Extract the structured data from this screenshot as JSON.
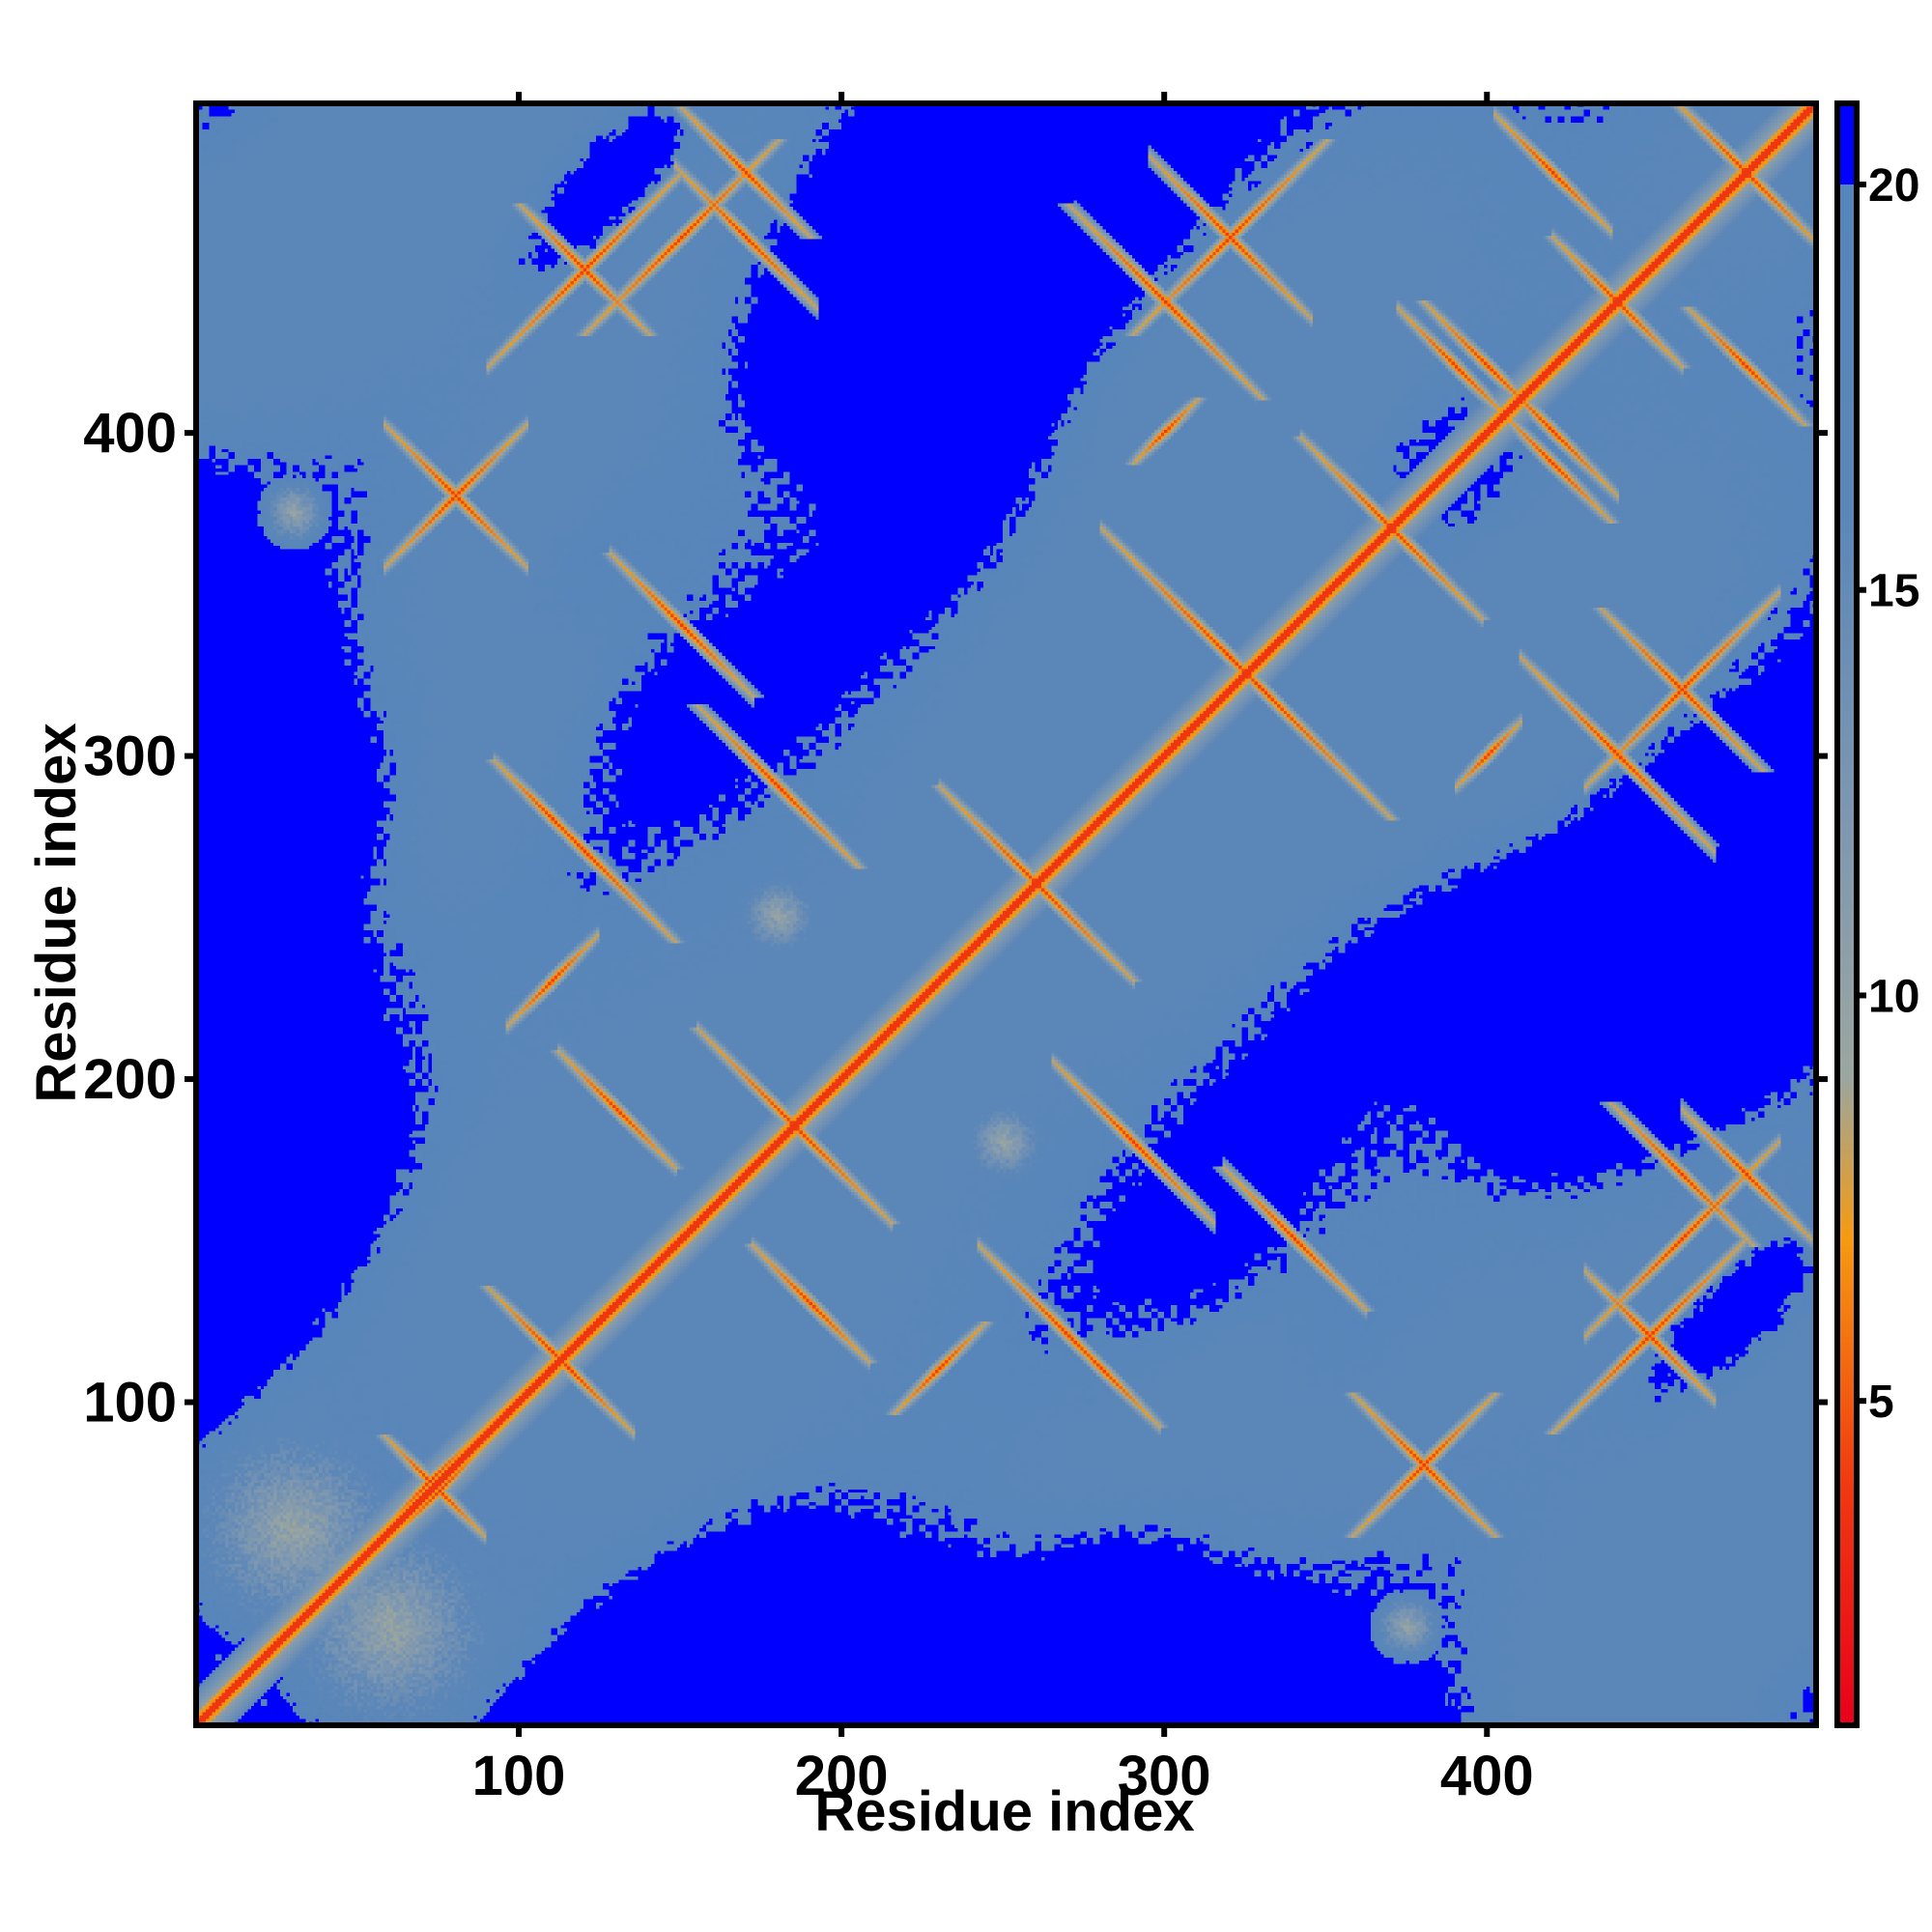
{
  "chart_data": {
    "type": "heatmap",
    "title": "",
    "xlabel": "Residue index",
    "ylabel": "Residue index",
    "n_residues": 502,
    "xlim": [
      0,
      502
    ],
    "ylim": [
      0,
      502
    ],
    "x_ticks": [
      100,
      200,
      300,
      400
    ],
    "y_ticks": [
      100,
      200,
      300,
      400
    ],
    "colorbar": {
      "ticks": [
        5,
        10,
        15,
        20
      ],
      "range": [
        1,
        21
      ],
      "stops": [
        {
          "value": 1,
          "color": "#e8001c"
        },
        {
          "value": 4,
          "color": "#f03a10"
        },
        {
          "value": 7,
          "color": "#f59a12"
        },
        {
          "value": 9,
          "color": "#9aa6a0"
        },
        {
          "value": 12,
          "color": "#7f98b0"
        },
        {
          "value": 16,
          "color": "#5b86b8"
        },
        {
          "value": 20,
          "color": "#5685bb"
        },
        {
          "value": 20.001,
          "color": "#0000ff"
        },
        {
          "value": 21,
          "color": "#0000ff"
        }
      ]
    },
    "background_color": "#0000ff",
    "mid_color": "#5685bb",
    "diagonal_color": "#e8001c",
    "contact_patterns": [
      {
        "i": 72,
        "j": 75,
        "kind": "cross",
        "len": 14
      },
      {
        "i": 60,
        "j": 30,
        "kind": "patch",
        "len": 40
      },
      {
        "i": 110,
        "j": 115,
        "kind": "antidiag",
        "len": 20
      },
      {
        "i": 185,
        "j": 185,
        "kind": "cross",
        "len": 30
      },
      {
        "i": 260,
        "j": 260,
        "kind": "cross",
        "len": 30
      },
      {
        "i": 370,
        "j": 370,
        "kind": "cross",
        "len": 28
      },
      {
        "i": 330,
        "j": 320,
        "kind": "antidiag",
        "len": 40
      },
      {
        "i": 480,
        "j": 480,
        "kind": "cross",
        "len": 25
      },
      {
        "i": 440,
        "j": 440,
        "kind": "antidiag",
        "len": 20
      },
      {
        "i": 150,
        "j": 460,
        "kind": "parallel",
        "len": 30
      },
      {
        "i": 170,
        "j": 480,
        "kind": "antidiag",
        "len": 20
      },
      {
        "i": 80,
        "j": 380,
        "kind": "cross",
        "len": 20
      },
      {
        "i": 30,
        "j": 375,
        "kind": "patch",
        "len": 12
      },
      {
        "i": 380,
        "j": 80,
        "kind": "cross",
        "len": 22
      },
      {
        "i": 375,
        "j": 30,
        "kind": "patch",
        "len": 10
      },
      {
        "i": 120,
        "j": 270,
        "kind": "antidiag",
        "len": 28
      },
      {
        "i": 180,
        "j": 290,
        "kind": "antidiag",
        "len": 25
      },
      {
        "i": 270,
        "j": 120,
        "kind": "antidiag",
        "len": 22
      },
      {
        "i": 290,
        "j": 180,
        "kind": "antidiag",
        "len": 22
      },
      {
        "i": 300,
        "j": 440,
        "kind": "antidiag",
        "len": 30
      },
      {
        "i": 440,
        "j": 300,
        "kind": "antidiag",
        "len": 28
      },
      {
        "i": 250,
        "j": 180,
        "kind": "patch",
        "len": 14
      },
      {
        "i": 180,
        "j": 250,
        "kind": "patch",
        "len": 14
      },
      {
        "i": 460,
        "j": 170,
        "kind": "antidiag",
        "len": 22
      },
      {
        "i": 450,
        "j": 120,
        "kind": "parallel",
        "len": 30
      },
      {
        "i": 120,
        "j": 450,
        "kind": "antidiag",
        "len": 20
      },
      {
        "i": 320,
        "j": 460,
        "kind": "parallel",
        "len": 30
      },
      {
        "i": 460,
        "j": 320,
        "kind": "antidiag",
        "len": 25
      },
      {
        "i": 340,
        "j": 150,
        "kind": "antidiag",
        "len": 22
      },
      {
        "i": 150,
        "j": 340,
        "kind": "antidiag",
        "len": 22
      },
      {
        "i": 280,
        "j": 110,
        "kind": "antidiag",
        "len": 18
      },
      {
        "i": 230,
        "j": 110,
        "kind": "parallel",
        "len": 14
      },
      {
        "i": 480,
        "j": 420,
        "kind": "antidiag",
        "len": 18
      },
      {
        "i": 400,
        "j": 420,
        "kind": "antidiag",
        "len": 20
      },
      {
        "i": 420,
        "j": 390,
        "kind": "antidiag",
        "len": 18
      },
      {
        "i": 300,
        "j": 400,
        "kind": "parallel",
        "len": 10
      },
      {
        "i": 190,
        "j": 130,
        "kind": "antidiag",
        "len": 18
      },
      {
        "i": 130,
        "j": 190,
        "kind": "antidiag",
        "len": 18
      }
    ]
  }
}
